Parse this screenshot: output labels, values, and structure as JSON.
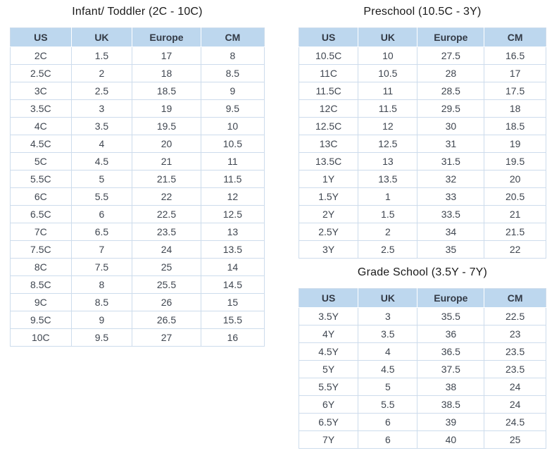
{
  "colors": {
    "header_bg": "#bdd7ee",
    "border": "#cddcec",
    "header_text": "#333a45",
    "body_text": "#3f4650"
  },
  "tables": [
    {
      "id": "infant-toddler",
      "title": "Infant/ Toddler (2C - 10C)",
      "columns": [
        "US",
        "UK",
        "Europe",
        "CM"
      ],
      "rows": [
        [
          "2C",
          "1.5",
          "17",
          "8"
        ],
        [
          "2.5C",
          "2",
          "18",
          "8.5"
        ],
        [
          "3C",
          "2.5",
          "18.5",
          "9"
        ],
        [
          "3.5C",
          "3",
          "19",
          "9.5"
        ],
        [
          "4C",
          "3.5",
          "19.5",
          "10"
        ],
        [
          "4.5C",
          "4",
          "20",
          "10.5"
        ],
        [
          "5C",
          "4.5",
          "21",
          "11"
        ],
        [
          "5.5C",
          "5",
          "21.5",
          "11.5"
        ],
        [
          "6C",
          "5.5",
          "22",
          "12"
        ],
        [
          "6.5C",
          "6",
          "22.5",
          "12.5"
        ],
        [
          "7C",
          "6.5",
          "23.5",
          "13"
        ],
        [
          "7.5C",
          "7",
          "24",
          "13.5"
        ],
        [
          "8C",
          "7.5",
          "25",
          "14"
        ],
        [
          "8.5C",
          "8",
          "25.5",
          "14.5"
        ],
        [
          "9C",
          "8.5",
          "26",
          "15"
        ],
        [
          "9.5C",
          "9",
          "26.5",
          "15.5"
        ],
        [
          "10C",
          "9.5",
          "27",
          "16"
        ]
      ]
    },
    {
      "id": "preschool",
      "title": "Preschool (10.5C - 3Y)",
      "columns": [
        "US",
        "UK",
        "Europe",
        "CM"
      ],
      "rows": [
        [
          "10.5C",
          "10",
          "27.5",
          "16.5"
        ],
        [
          "11C",
          "10.5",
          "28",
          "17"
        ],
        [
          "11.5C",
          "11",
          "28.5",
          "17.5"
        ],
        [
          "12C",
          "11.5",
          "29.5",
          "18"
        ],
        [
          "12.5C",
          "12",
          "30",
          "18.5"
        ],
        [
          "13C",
          "12.5",
          "31",
          "19"
        ],
        [
          "13.5C",
          "13",
          "31.5",
          "19.5"
        ],
        [
          "1Y",
          "13.5",
          "32",
          "20"
        ],
        [
          "1.5Y",
          "1",
          "33",
          "20.5"
        ],
        [
          "2Y",
          "1.5",
          "33.5",
          "21"
        ],
        [
          "2.5Y",
          "2",
          "34",
          "21.5"
        ],
        [
          "3Y",
          "2.5",
          "35",
          "22"
        ]
      ]
    },
    {
      "id": "grade-school",
      "title": "Grade School (3.5Y - 7Y)",
      "columns": [
        "US",
        "UK",
        "Europe",
        "CM"
      ],
      "rows": [
        [
          "3.5Y",
          "3",
          "35.5",
          "22.5"
        ],
        [
          "4Y",
          "3.5",
          "36",
          "23"
        ],
        [
          "4.5Y",
          "4",
          "36.5",
          "23.5"
        ],
        [
          "5Y",
          "4.5",
          "37.5",
          "23.5"
        ],
        [
          "5.5Y",
          "5",
          "38",
          "24"
        ],
        [
          "6Y",
          "5.5",
          "38.5",
          "24"
        ],
        [
          "6.5Y",
          "6",
          "39",
          "24.5"
        ],
        [
          "7Y",
          "6",
          "40",
          "25"
        ]
      ]
    }
  ]
}
